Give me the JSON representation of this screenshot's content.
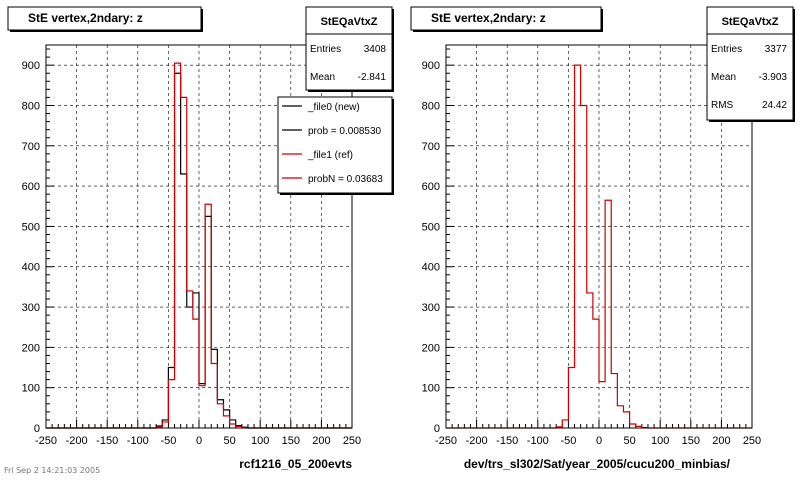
{
  "footer_text": "Fri Sep 2 14:21:03 2005",
  "chart_data": [
    {
      "type": "histogram",
      "title": "StE  vertex,2ndary: z",
      "xlabel": "rcf1216_05_200evts",
      "xlim": [
        -250,
        250
      ],
      "ylim": [
        0,
        950
      ],
      "x_ticks": [
        -250,
        -200,
        -150,
        -100,
        -50,
        0,
        50,
        100,
        150,
        200,
        250
      ],
      "y_ticks": [
        0,
        100,
        200,
        300,
        400,
        500,
        600,
        700,
        800,
        900
      ],
      "grid": true,
      "bin_edges": [
        -70,
        -60,
        -50,
        -40,
        -30,
        -20,
        -10,
        0,
        10,
        20,
        30,
        40,
        50,
        60,
        70,
        80
      ],
      "series": [
        {
          "name": "_file0 (new)",
          "color": "#000000",
          "values": [
            5,
            20,
            150,
            880,
            630,
            300,
            335,
            110,
            525,
            195,
            70,
            45,
            20,
            6,
            2
          ]
        },
        {
          "name": "_file1 (ref)",
          "color": "#cc0000",
          "values": [
            3,
            15,
            120,
            905,
            820,
            340,
            270,
            105,
            555,
            160,
            60,
            30,
            10,
            4,
            1
          ]
        }
      ],
      "stats": {
        "title": "StEQaVtxZ",
        "entries_label": "Entries",
        "entries": "3408",
        "mean_label": "Mean",
        "mean": "-2.841"
      },
      "legend": [
        {
          "label": "_file0 (new)",
          "color": "#000000"
        },
        {
          "label": "prob = 0.008530",
          "color": "#000000"
        },
        {
          "label": "_file1 (ref)",
          "color": "#cc0000"
        },
        {
          "label": "probN = 0.03683",
          "color": "#cc0000"
        }
      ]
    },
    {
      "type": "histogram",
      "title": "StE  vertex,2ndary: z",
      "xlabel": "dev/trs_sl302/Sat/year_2005/cucu200_minbias/",
      "xlim": [
        -250,
        250
      ],
      "ylim": [
        0,
        950
      ],
      "x_ticks": [
        -250,
        -200,
        -150,
        -100,
        -50,
        0,
        50,
        100,
        150,
        200,
        250
      ],
      "y_ticks": [
        0,
        100,
        200,
        300,
        400,
        500,
        600,
        700,
        800,
        900
      ],
      "grid": true,
      "bin_edges": [
        -70,
        -60,
        -50,
        -40,
        -30,
        -20,
        -10,
        0,
        10,
        20,
        30,
        40,
        50,
        60,
        70,
        80
      ],
      "series": [
        {
          "name": "",
          "color": "#cc0000",
          "values": [
            3,
            20,
            150,
            900,
            800,
            335,
            270,
            115,
            565,
            135,
            55,
            40,
            10,
            4,
            1
          ]
        }
      ],
      "stats": {
        "title": "StEQaVtxZ",
        "entries_label": "Entries",
        "entries": "3377",
        "mean_label": "Mean",
        "mean": "-3.903",
        "rms_label": "RMS",
        "rms": "24.42"
      }
    }
  ]
}
